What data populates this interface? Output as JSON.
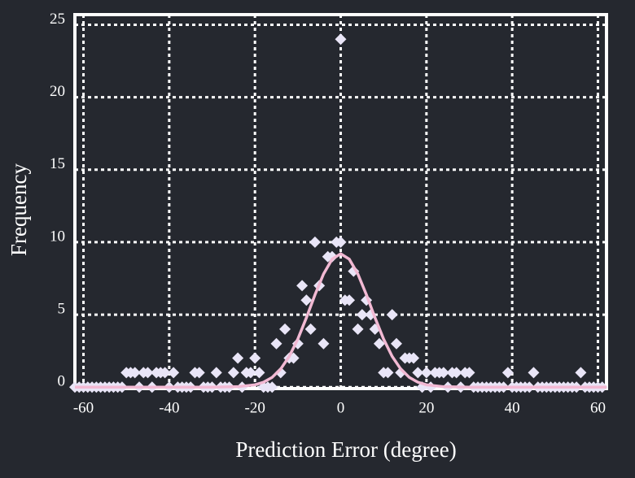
{
  "chart_data": {
    "type": "scatter",
    "x_label": "Prediction Error (degree)",
    "y_label": "Frequency",
    "xlim": [
      -62,
      62
    ],
    "ylim": [
      -0.1,
      25.7
    ],
    "xticks": [
      -60,
      -40,
      -20,
      0,
      20,
      40,
      60
    ],
    "yticks": [
      0,
      5,
      10,
      15,
      20,
      25
    ],
    "grid": true,
    "points": {
      "color": "#e9e5f7",
      "x": [
        -62,
        -61,
        -60,
        -59,
        -58,
        -57,
        -56,
        -55,
        -54,
        -53,
        -52,
        -51,
        -50,
        -49,
        -48,
        -47,
        -46,
        -45,
        -44,
        -43,
        -42,
        -41,
        -40,
        -39,
        -38,
        -37,
        -36,
        -35,
        -34,
        -33,
        -32,
        -31,
        -30,
        -29,
        -28,
        -27,
        -26,
        -25,
        -24,
        -23,
        -22,
        -21,
        -20,
        -19,
        -18,
        -17,
        -16,
        -15,
        -14,
        -13,
        -12,
        -11,
        -10,
        -9,
        -8,
        -7,
        -6,
        -5,
        -4,
        -3,
        -2,
        -1,
        0,
        0,
        1,
        2,
        3,
        4,
        5,
        6,
        7,
        8,
        9,
        10,
        11,
        12,
        13,
        14,
        15,
        16,
        17,
        18,
        19,
        20,
        21,
        22,
        23,
        24,
        25,
        26,
        27,
        28,
        29,
        30,
        31,
        32,
        33,
        34,
        35,
        36,
        37,
        38,
        39,
        40,
        41,
        42,
        43,
        44,
        45,
        46,
        47,
        48,
        49,
        50,
        51,
        52,
        53,
        54,
        55,
        56,
        57,
        58,
        59,
        60,
        61
      ],
      "y": [
        0,
        0,
        0,
        0,
        0,
        0,
        0,
        0,
        0,
        0,
        0,
        0,
        1,
        1,
        1,
        0,
        1,
        1,
        0,
        1,
        1,
        1,
        0,
        1,
        0,
        0,
        0,
        0,
        1,
        1,
        0,
        0,
        0,
        1,
        0,
        0,
        0,
        1,
        2,
        0,
        1,
        1,
        2,
        1,
        0,
        0,
        0,
        3,
        1,
        4,
        2,
        2,
        3,
        7,
        6,
        4,
        10,
        7,
        3,
        9,
        9,
        10,
        24,
        10,
        6,
        6,
        8,
        4,
        5,
        6,
        5,
        4,
        3,
        1,
        1,
        5,
        3,
        1,
        2,
        2,
        2,
        1,
        0,
        1,
        0,
        1,
        1,
        1,
        0,
        1,
        1,
        0,
        1,
        1,
        0,
        0,
        0,
        0,
        0,
        0,
        0,
        0,
        1,
        0,
        0,
        0,
        0,
        0,
        1,
        0,
        0,
        0,
        0,
        0,
        0,
        0,
        0,
        0,
        0,
        1,
        0,
        0,
        0,
        0,
        0
      ]
    },
    "fit": {
      "color": "#f2b9d3",
      "x": [
        -62,
        -30,
        -24,
        -20,
        -18,
        -16,
        -14,
        -12,
        -10,
        -8,
        -6,
        -4,
        -2,
        0,
        2,
        4,
        6,
        8,
        10,
        12,
        14,
        16,
        18,
        20,
        24,
        30,
        62
      ],
      "y": [
        0,
        0,
        0.03,
        0.16,
        0.34,
        0.67,
        1.25,
        2.12,
        3.32,
        4.79,
        6.37,
        7.81,
        8.83,
        9.2,
        8.83,
        7.81,
        6.37,
        4.79,
        3.32,
        2.12,
        1.25,
        0.67,
        0.34,
        0.16,
        0.03,
        0,
        0
      ]
    }
  }
}
